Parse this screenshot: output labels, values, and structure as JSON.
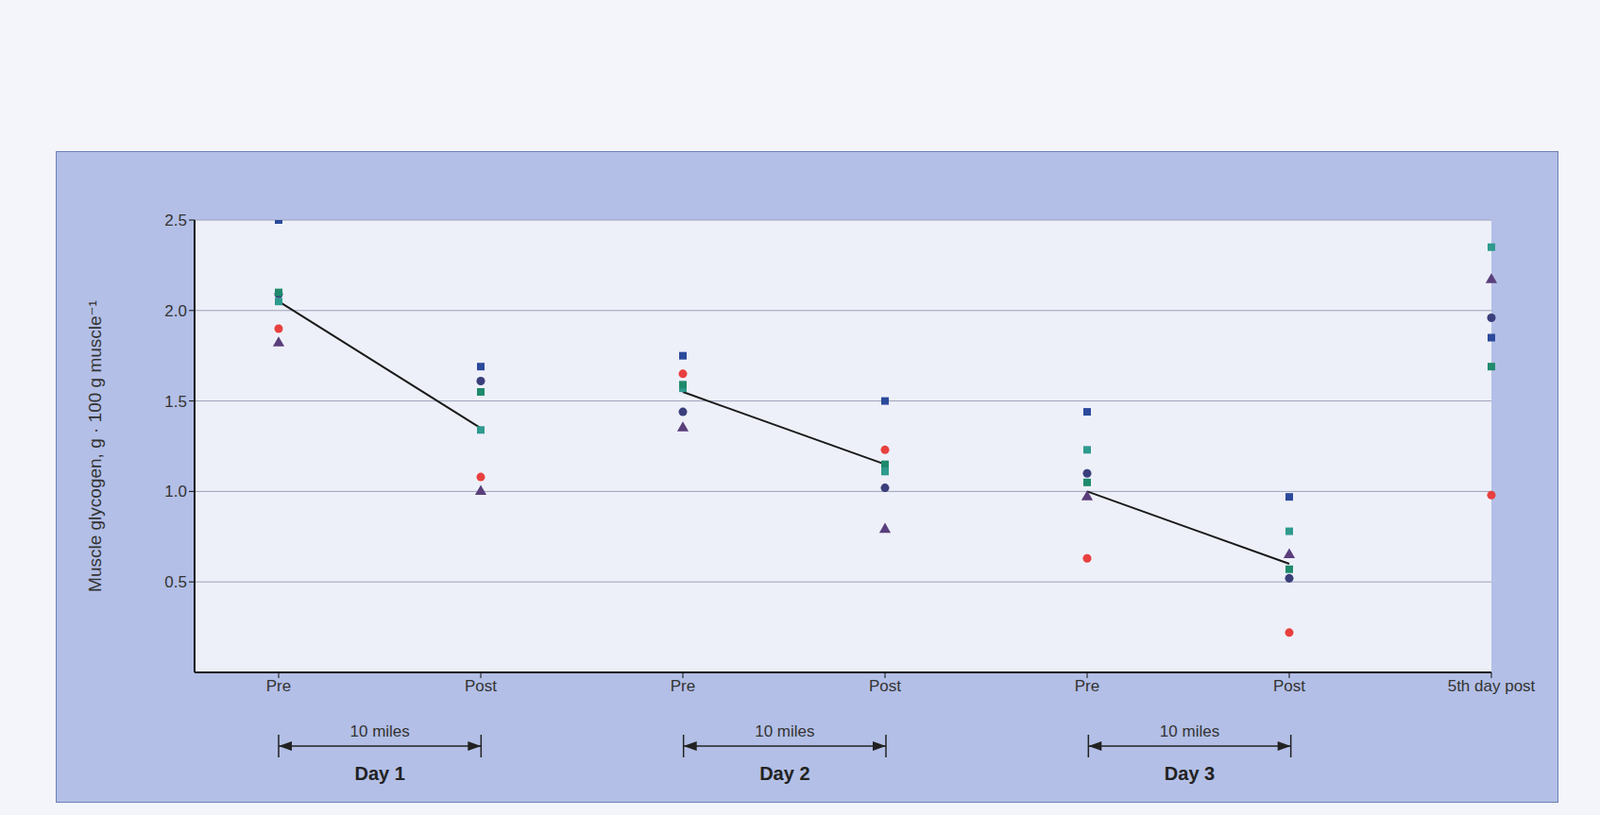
{
  "chart_data": {
    "type": "scatter",
    "y_label": "Muscle glycogen, g · 100 g muscle⁻¹",
    "categories": [
      "Pre",
      "Post",
      "Pre",
      "Post",
      "Pre",
      "Post",
      "5th day post"
    ],
    "ylim": [
      0,
      2.5
    ],
    "yticks": [
      0.5,
      {
        "value": 1,
        "label": "1.0"
      },
      1.5,
      {
        "value": 2,
        "label": "2.0"
      },
      2.5
    ],
    "grid": true,
    "groups": [
      {
        "label": "Day 1",
        "span_label": "10 miles",
        "from": 0,
        "to": 1
      },
      {
        "label": "Day 2",
        "span_label": "10 miles",
        "from": 2,
        "to": 3
      },
      {
        "label": "Day 3",
        "span_label": "10 miles",
        "from": 4,
        "to": 5
      }
    ],
    "series": [
      {
        "type": "scatter",
        "marker": "square",
        "color": "#2b4a9c",
        "values": [
          2.5,
          1.69,
          1.75,
          1.5,
          1.44,
          0.97,
          1.85
        ]
      },
      {
        "type": "scatter",
        "marker": "circle",
        "color": "#3a3f7c",
        "values": [
          2.09,
          1.61,
          1.44,
          1.02,
          1.1,
          0.52,
          1.96
        ]
      },
      {
        "type": "scatter",
        "marker": "square",
        "color": "#2f9a8e",
        "values": [
          2.05,
          1.34,
          1.57,
          1.11,
          1.23,
          0.78,
          2.35
        ]
      },
      {
        "type": "scatter",
        "marker": "circle",
        "color": "#e8403f",
        "values": [
          1.9,
          1.08,
          1.65,
          1.23,
          0.63,
          0.22,
          0.98
        ]
      },
      {
        "type": "scatter",
        "marker": "triangle",
        "color": "#5a3e7c",
        "values": [
          1.82,
          1.0,
          1.35,
          0.79,
          0.97,
          0.65,
          2.17
        ]
      },
      {
        "type": "scatter",
        "marker": "square",
        "color": "#1f8a6c",
        "values": [
          2.1,
          1.55,
          1.59,
          1.15,
          1.05,
          0.57,
          1.69
        ]
      },
      {
        "type": "line",
        "color": "#1a1a1a",
        "values": [
          2.05,
          1.35,
          null,
          null,
          null,
          null,
          null
        ]
      },
      {
        "type": "line",
        "color": "#1a1a1a",
        "values": [
          null,
          null,
          1.55,
          1.15,
          null,
          null,
          null
        ]
      },
      {
        "type": "line",
        "color": "#1a1a1a",
        "values": [
          null,
          null,
          null,
          null,
          1.0,
          0.6,
          null
        ]
      }
    ]
  }
}
